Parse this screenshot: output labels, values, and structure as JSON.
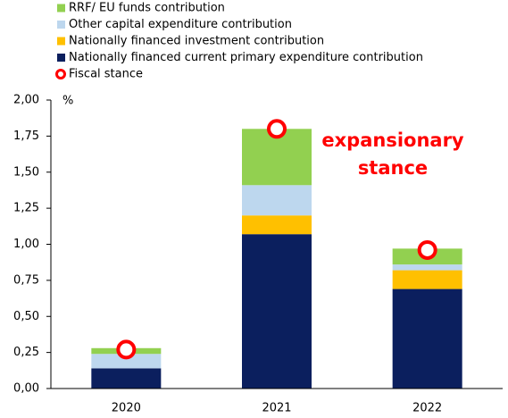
{
  "chart_data": {
    "type": "bar",
    "stacked": true,
    "categories": [
      "2020",
      "2021",
      "2022"
    ],
    "series": [
      {
        "name": "Nationally financed current primary expenditure contribution",
        "color": "#0b1f5e",
        "values": [
          0.14,
          1.07,
          0.69
        ]
      },
      {
        "name": "Nationally financed investment contribution",
        "color": "#ffc000",
        "values": [
          0,
          0.13,
          0.13
        ]
      },
      {
        "name": "Other capital expenditure contribution",
        "color": "#bdd7ee",
        "values": [
          0.1,
          0.21,
          0.04
        ]
      },
      {
        "name": "RRF/ EU funds contribution",
        "color": "#92d050",
        "values": [
          0.04,
          0.39,
          0.11
        ]
      },
      {
        "name": "Fiscal stance",
        "type": "scatter",
        "color": "#ff0000",
        "values": [
          0.27,
          1.8,
          0.96
        ]
      }
    ],
    "y_unit": "%",
    "annotation_lines": [
      "expansionary",
      "stance"
    ],
    "ylim": [
      0,
      2
    ],
    "yticks": [
      {
        "value": 0,
        "label": "0,00"
      },
      {
        "value": 0.25,
        "label": "0,25"
      },
      {
        "value": 0.5,
        "label": "0,50"
      },
      {
        "value": 0.75,
        "label": "0,75"
      },
      {
        "value": 1,
        "label": "1,00"
      },
      {
        "value": 1.25,
        "label": "1,25"
      },
      {
        "value": 1.5,
        "label": "1,50"
      },
      {
        "value": 1.75,
        "label": "1,75"
      },
      {
        "value": 2,
        "label": "2,00"
      }
    ],
    "legend": "top-left"
  }
}
